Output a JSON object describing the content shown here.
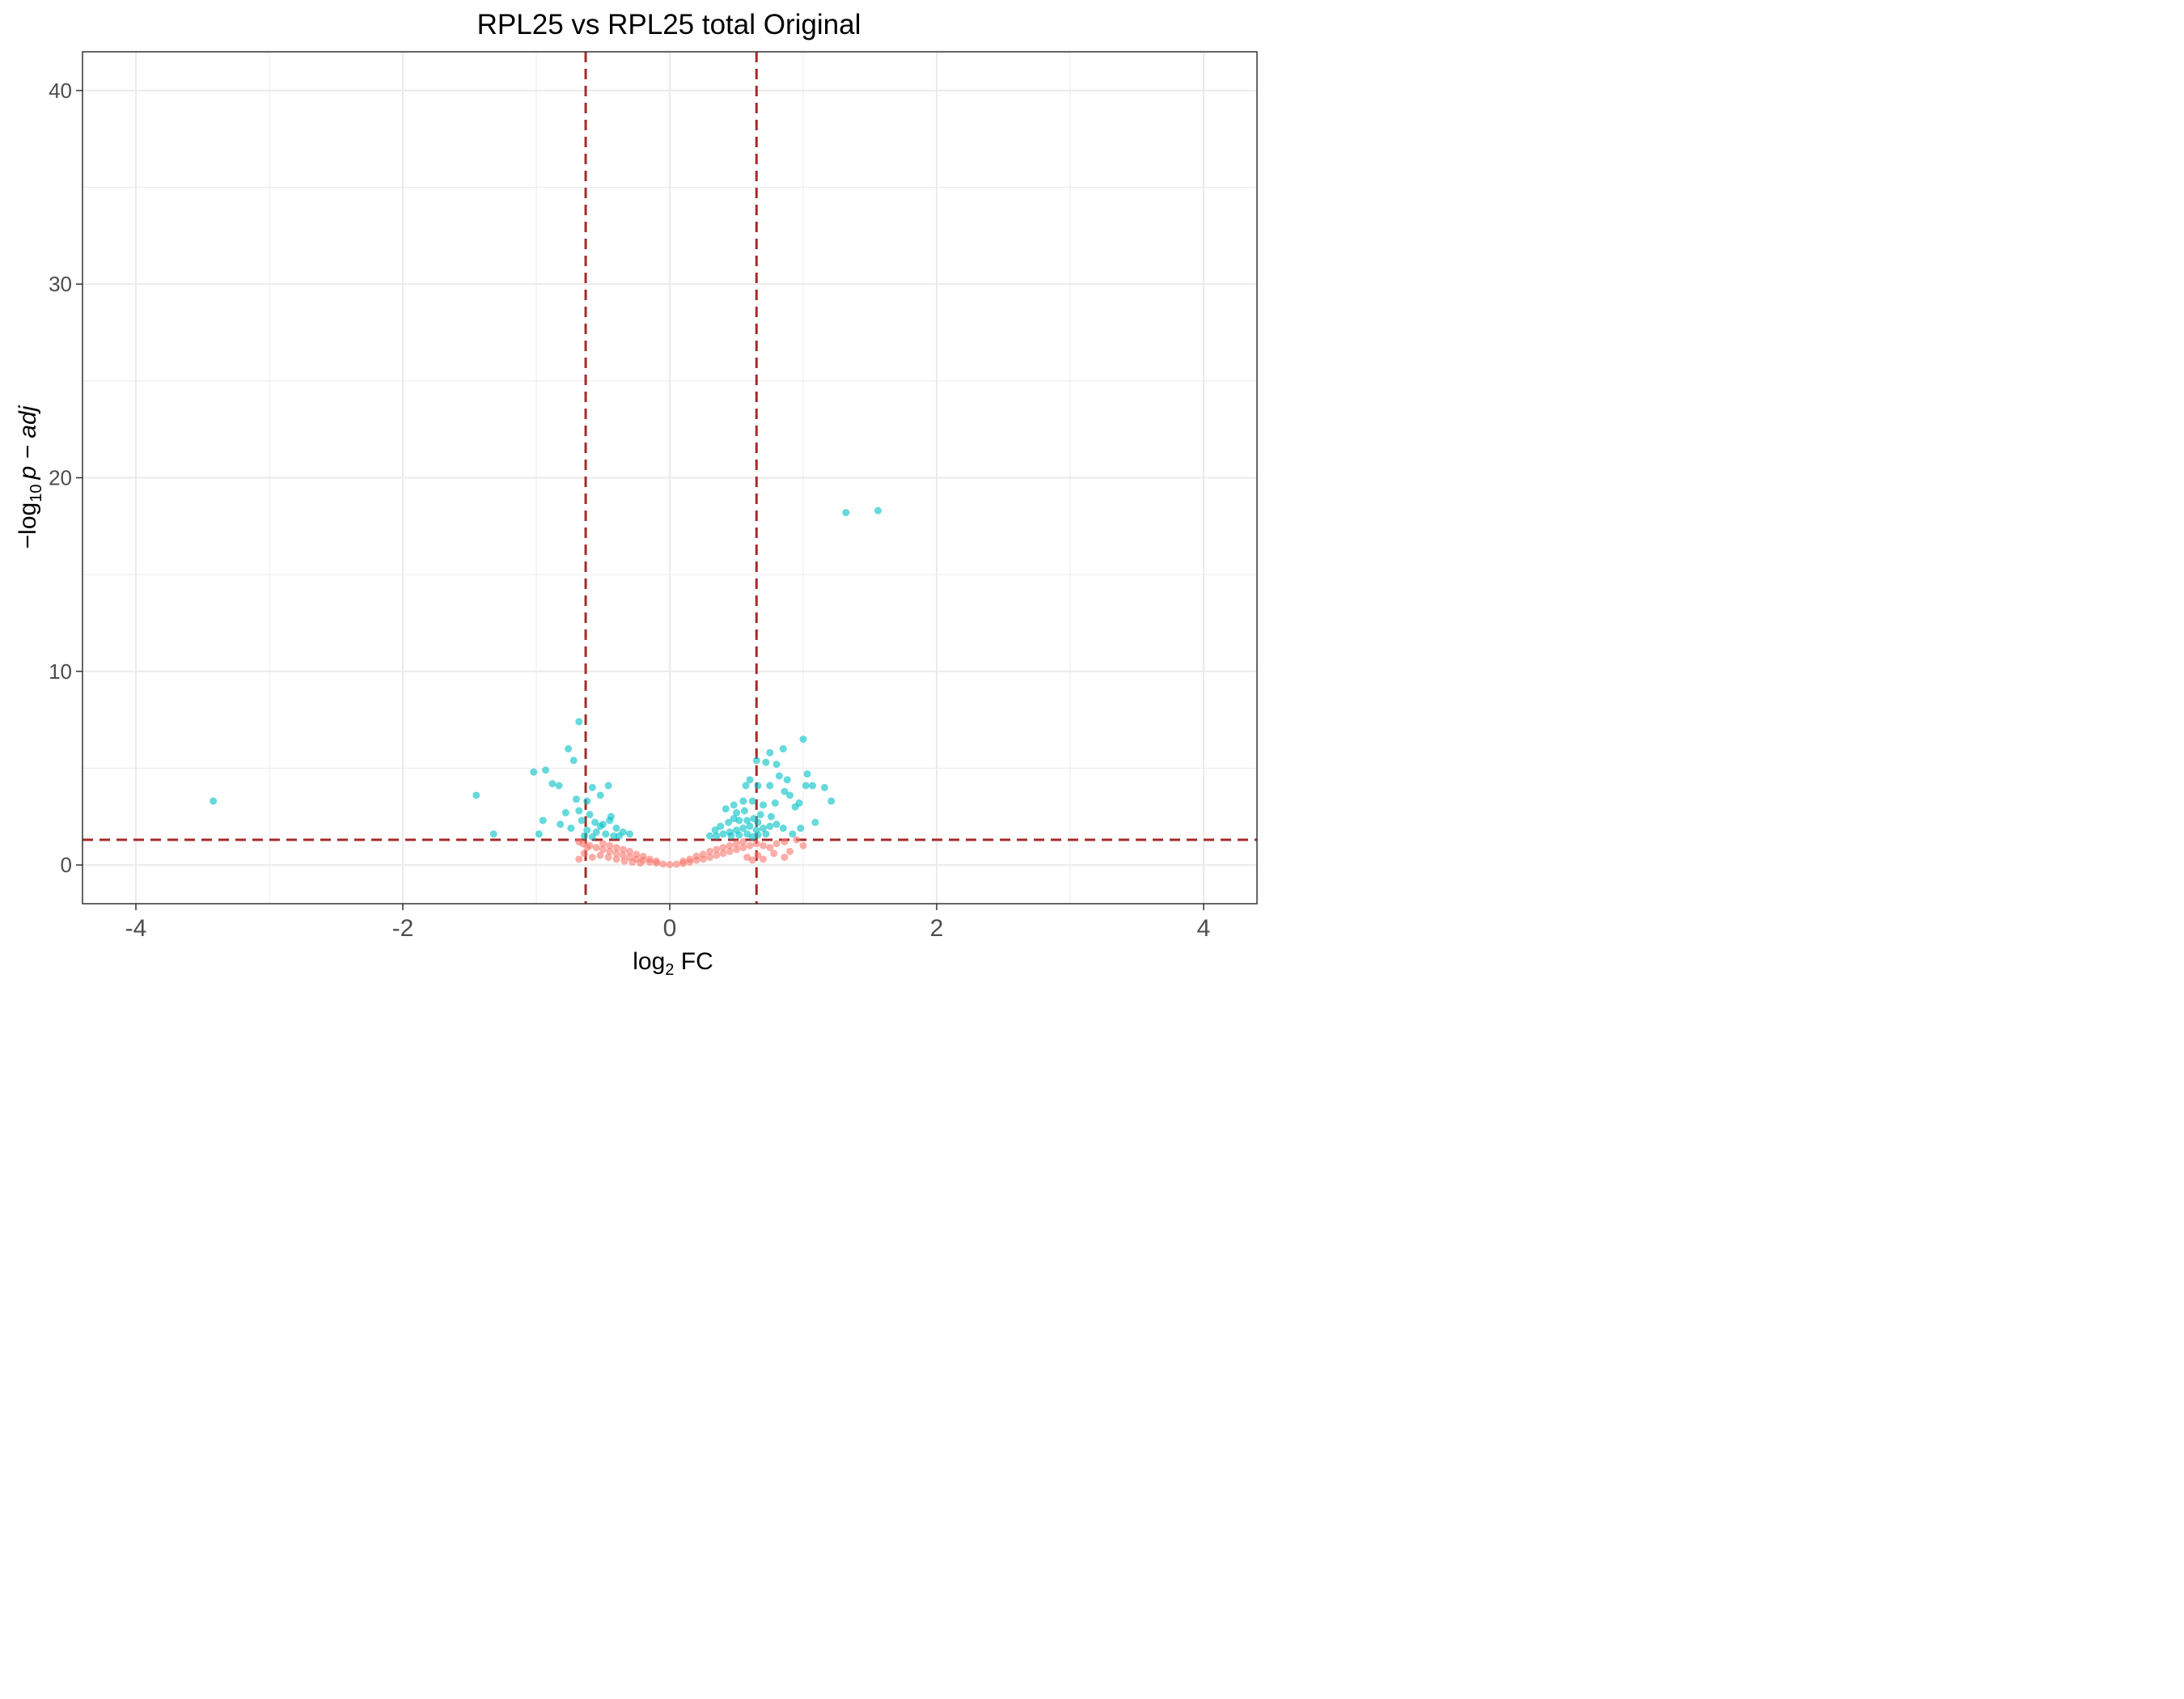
{
  "chart_data": {
    "type": "scatter",
    "title": "RPL25 vs RPL25 total Original",
    "xlabel": {
      "main": "log",
      "sub": "2",
      "suffix": " FC"
    },
    "ylabel": {
      "prefix": "−log",
      "sub": "10",
      "suffix": "p − adj"
    },
    "xlim": [
      -4.4,
      4.4
    ],
    "ylim": [
      -2,
      42
    ],
    "x_major_ticks": [
      -4,
      -2,
      0,
      2,
      4
    ],
    "x_tick_labels": [
      "-4",
      "-2",
      "0",
      "2",
      "4"
    ],
    "y_major_ticks": [
      0,
      10,
      20,
      30,
      40
    ],
    "y_tick_labels": [
      "0",
      "10",
      "20",
      "30",
      "40"
    ],
    "grid": true,
    "legend": "none",
    "thresholds": {
      "fc_left": -0.63,
      "fc_right": 0.65,
      "neg_log_padj": 1.3
    },
    "colors": {
      "significant": "#00BFC4",
      "not_significant": "#F8766D",
      "threshold_line": "#A52A2A",
      "grid": "#EBEBEB",
      "panel_border": "#333333"
    },
    "series": [
      {
        "class": "significant",
        "points": [
          [
            -3.42,
            3.3
          ],
          [
            -1.45,
            3.6
          ],
          [
            -1.32,
            1.6
          ],
          [
            -1.02,
            4.8
          ],
          [
            -0.93,
            4.9
          ],
          [
            -0.88,
            4.2
          ],
          [
            -0.83,
            4.1
          ],
          [
            -0.76,
            6.0
          ],
          [
            -0.72,
            5.4
          ],
          [
            -0.68,
            7.4
          ],
          [
            -0.7,
            3.4
          ],
          [
            -0.68,
            2.8
          ],
          [
            -0.62,
            3.3
          ],
          [
            -0.58,
            4.0
          ],
          [
            -0.52,
            3.6
          ],
          [
            -0.46,
            4.1
          ],
          [
            -0.66,
            2.3
          ],
          [
            -0.6,
            2.6
          ],
          [
            -0.56,
            2.2
          ],
          [
            -0.5,
            2.1
          ],
          [
            -0.45,
            2.3
          ],
          [
            -0.4,
            1.9
          ],
          [
            -0.35,
            1.7
          ],
          [
            -0.3,
            1.6
          ],
          [
            -0.62,
            1.8
          ],
          [
            -0.55,
            1.7
          ],
          [
            -0.48,
            1.6
          ],
          [
            -0.42,
            1.5
          ],
          [
            -0.38,
            1.5
          ],
          [
            -0.64,
            1.5
          ],
          [
            -0.58,
            1.45
          ],
          [
            -0.52,
            2.0
          ],
          [
            -0.44,
            2.5
          ],
          [
            -0.78,
            2.7
          ],
          [
            -0.82,
            2.1
          ],
          [
            -0.95,
            2.3
          ],
          [
            -0.98,
            1.6
          ],
          [
            -0.74,
            1.9
          ],
          [
            1.32,
            18.2
          ],
          [
            1.56,
            18.3
          ],
          [
            1.0,
            6.5
          ],
          [
            0.85,
            6.0
          ],
          [
            0.75,
            5.8
          ],
          [
            0.65,
            5.4
          ],
          [
            0.8,
            5.2
          ],
          [
            0.72,
            5.3
          ],
          [
            0.57,
            4.1
          ],
          [
            0.6,
            4.4
          ],
          [
            0.66,
            4.1
          ],
          [
            0.82,
            4.6
          ],
          [
            1.03,
            4.7
          ],
          [
            0.88,
            4.4
          ],
          [
            0.75,
            4.1
          ],
          [
            1.02,
            4.1
          ],
          [
            1.07,
            4.1
          ],
          [
            1.16,
            4.0
          ],
          [
            1.21,
            3.3
          ],
          [
            0.86,
            3.8
          ],
          [
            0.9,
            3.6
          ],
          [
            0.97,
            3.2
          ],
          [
            0.94,
            3.0
          ],
          [
            0.79,
            3.2
          ],
          [
            0.7,
            3.1
          ],
          [
            0.62,
            3.3
          ],
          [
            0.55,
            3.3
          ],
          [
            0.48,
            3.1
          ],
          [
            0.42,
            2.9
          ],
          [
            0.5,
            2.7
          ],
          [
            0.56,
            2.8
          ],
          [
            0.63,
            2.4
          ],
          [
            0.68,
            2.6
          ],
          [
            0.76,
            2.5
          ],
          [
            1.09,
            2.2
          ],
          [
            0.98,
            1.9
          ],
          [
            0.92,
            1.6
          ],
          [
            0.6,
            2.0
          ],
          [
            0.55,
            1.9
          ],
          [
            0.5,
            1.8
          ],
          [
            0.45,
            1.7
          ],
          [
            0.4,
            1.6
          ],
          [
            0.35,
            1.5
          ],
          [
            0.65,
            1.8
          ],
          [
            0.7,
            1.9
          ],
          [
            0.75,
            2.0
          ],
          [
            0.8,
            2.1
          ],
          [
            0.85,
            1.9
          ],
          [
            0.58,
            1.6
          ],
          [
            0.52,
            1.55
          ],
          [
            0.46,
            1.5
          ],
          [
            0.72,
            1.6
          ],
          [
            0.66,
            1.55
          ],
          [
            0.62,
            1.45
          ],
          [
            0.44,
            2.2
          ],
          [
            0.38,
            2.0
          ],
          [
            0.3,
            1.5
          ],
          [
            0.34,
            1.8
          ],
          [
            0.48,
            2.4
          ],
          [
            0.52,
            2.3
          ],
          [
            0.58,
            2.3
          ],
          [
            0.66,
            2.2
          ]
        ]
      },
      {
        "class": "not_significant",
        "points": [
          [
            -0.68,
            1.2
          ],
          [
            -0.65,
            1.1
          ],
          [
            -0.62,
            0.9
          ],
          [
            -0.6,
            1.0
          ],
          [
            -0.55,
            0.9
          ],
          [
            -0.5,
            0.8
          ],
          [
            -0.45,
            0.7
          ],
          [
            -0.4,
            0.6
          ],
          [
            -0.35,
            0.5
          ],
          [
            -0.3,
            0.4
          ],
          [
            -0.25,
            0.3
          ],
          [
            -0.2,
            0.25
          ],
          [
            -0.15,
            0.15
          ],
          [
            -0.1,
            0.1
          ],
          [
            -0.05,
            0.05
          ],
          [
            0.0,
            0.02
          ],
          [
            0.05,
            0.04
          ],
          [
            0.1,
            0.08
          ],
          [
            0.15,
            0.15
          ],
          [
            0.2,
            0.25
          ],
          [
            0.25,
            0.3
          ],
          [
            0.3,
            0.4
          ],
          [
            0.35,
            0.5
          ],
          [
            0.4,
            0.6
          ],
          [
            0.45,
            0.7
          ],
          [
            0.5,
            0.8
          ],
          [
            0.55,
            0.9
          ],
          [
            0.6,
            1.0
          ],
          [
            0.65,
            1.1
          ],
          [
            0.7,
            1.0
          ],
          [
            0.75,
            0.9
          ],
          [
            0.8,
            1.1
          ],
          [
            0.86,
            1.2
          ],
          [
            0.9,
            0.7
          ],
          [
            0.66,
            0.5
          ],
          [
            0.7,
            0.3
          ],
          [
            0.58,
            0.4
          ],
          [
            0.86,
            0.4
          ],
          [
            1.0,
            1.0
          ],
          [
            0.95,
            1.3
          ],
          [
            -0.64,
            0.6
          ],
          [
            -0.58,
            0.4
          ],
          [
            -0.52,
            0.5
          ],
          [
            -0.46,
            0.4
          ],
          [
            -0.4,
            0.3
          ],
          [
            -0.34,
            0.2
          ],
          [
            -0.28,
            0.15
          ],
          [
            -0.22,
            0.1
          ],
          [
            -0.5,
            1.1
          ],
          [
            -0.45,
            1.0
          ],
          [
            -0.4,
            0.9
          ],
          [
            -0.35,
            0.8
          ],
          [
            -0.3,
            0.7
          ],
          [
            -0.25,
            0.55
          ],
          [
            0.3,
            0.7
          ],
          [
            0.35,
            0.8
          ],
          [
            0.4,
            0.9
          ],
          [
            0.45,
            1.0
          ],
          [
            0.5,
            1.1
          ],
          [
            0.55,
            1.2
          ],
          [
            0.25,
            0.55
          ],
          [
            0.2,
            0.45
          ],
          [
            -0.2,
            0.45
          ],
          [
            -0.15,
            0.3
          ],
          [
            0.15,
            0.3
          ],
          [
            0.1,
            0.2
          ],
          [
            -0.1,
            0.2
          ],
          [
            0.62,
            0.25
          ],
          [
            0.78,
            0.6
          ],
          [
            -0.68,
            0.3
          ]
        ]
      }
    ]
  }
}
